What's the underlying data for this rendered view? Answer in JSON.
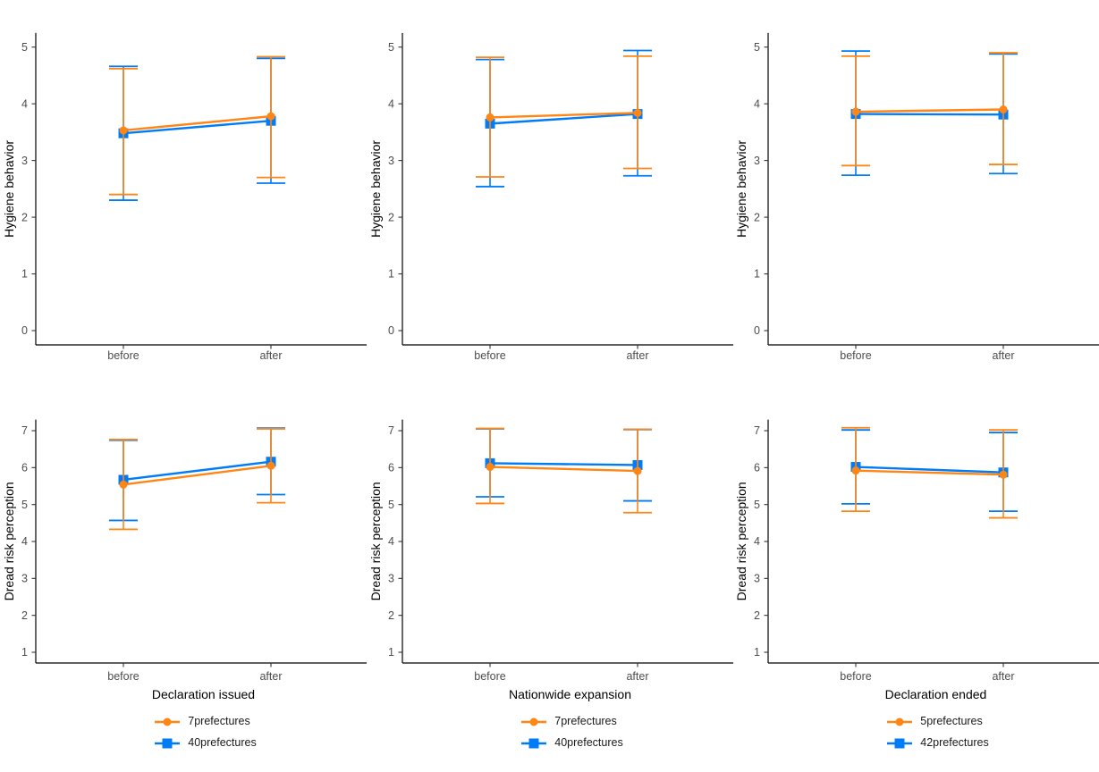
{
  "figure": {
    "background": "#ffffff",
    "rows": 2,
    "cols": 3,
    "column_topics": [
      "Declaration issued",
      "Nationwide expansion",
      "Declaration ended"
    ]
  },
  "colors": {
    "orange": "#FF8514",
    "blue": "#007CF8",
    "axis_line": "#000000",
    "tick_text": "#4D4D4D",
    "title_text": "#000000"
  },
  "chart_data": [
    {
      "id": "hygiene-declaration-issued",
      "type": "line",
      "row": 0,
      "col": 0,
      "ylabel": "Hygiene behavior",
      "xlabel": "",
      "x_categories": [
        "before",
        "after"
      ],
      "yticks": [
        0,
        1,
        2,
        3,
        4,
        5
      ],
      "ylim": [
        -0.25,
        5.25
      ],
      "grid": false,
      "series": [
        {
          "name": "7prefectures",
          "color_key": "orange",
          "shape": "circle",
          "values": [
            3.53,
            3.78
          ],
          "ci_low": [
            2.4,
            2.7
          ],
          "ci_high": [
            4.62,
            4.83
          ]
        },
        {
          "name": "40prefectures",
          "color_key": "blue",
          "shape": "square",
          "values": [
            3.48,
            3.7
          ],
          "ci_low": [
            2.3,
            2.6
          ],
          "ci_high": [
            4.66,
            4.8
          ]
        }
      ],
      "legend": null
    },
    {
      "id": "hygiene-nationwide-expansion",
      "type": "line",
      "row": 0,
      "col": 1,
      "ylabel": "Hygiene behavior",
      "xlabel": "",
      "x_categories": [
        "before",
        "after"
      ],
      "yticks": [
        0,
        1,
        2,
        3,
        4,
        5
      ],
      "ylim": [
        -0.25,
        5.25
      ],
      "grid": false,
      "series": [
        {
          "name": "7prefectures",
          "color_key": "orange",
          "shape": "circle",
          "values": [
            3.76,
            3.84
          ],
          "ci_low": [
            2.71,
            2.86
          ],
          "ci_high": [
            4.82,
            4.84
          ]
        },
        {
          "name": "40prefectures",
          "color_key": "blue",
          "shape": "square",
          "values": [
            3.65,
            3.82
          ],
          "ci_low": [
            2.54,
            2.73
          ],
          "ci_high": [
            4.78,
            4.94
          ]
        }
      ],
      "legend": null
    },
    {
      "id": "hygiene-declaration-ended",
      "type": "line",
      "row": 0,
      "col": 2,
      "ylabel": "Hygiene behavior",
      "xlabel": "",
      "x_categories": [
        "before",
        "after"
      ],
      "yticks": [
        0,
        1,
        2,
        3,
        4,
        5
      ],
      "ylim": [
        -0.25,
        5.25
      ],
      "grid": false,
      "series": [
        {
          "name": "5prefectures",
          "color_key": "orange",
          "shape": "circle",
          "values": [
            3.86,
            3.9
          ],
          "ci_low": [
            2.91,
            2.93
          ],
          "ci_high": [
            4.84,
            4.9
          ]
        },
        {
          "name": "42prefectures",
          "color_key": "blue",
          "shape": "square",
          "values": [
            3.82,
            3.81
          ],
          "ci_low": [
            2.74,
            2.77
          ],
          "ci_high": [
            4.93,
            4.88
          ]
        }
      ],
      "legend": null
    },
    {
      "id": "dread-declaration-issued",
      "type": "line",
      "row": 1,
      "col": 0,
      "ylabel": "Dread risk perception",
      "xlabel": "Declaration issued",
      "x_categories": [
        "before",
        "after"
      ],
      "yticks": [
        1,
        2,
        3,
        4,
        5,
        6,
        7
      ],
      "ylim": [
        0.7,
        7.3
      ],
      "grid": false,
      "series": [
        {
          "name": "7prefectures",
          "color_key": "orange",
          "shape": "circle",
          "values": [
            5.54,
            6.05
          ],
          "ci_low": [
            4.33,
            5.05
          ],
          "ci_high": [
            6.76,
            7.05
          ]
        },
        {
          "name": "40prefectures",
          "color_key": "blue",
          "shape": "square",
          "values": [
            5.67,
            6.16
          ],
          "ci_low": [
            4.57,
            5.27
          ],
          "ci_high": [
            6.74,
            7.07
          ]
        }
      ],
      "legend": [
        "7prefectures",
        "40prefectures"
      ]
    },
    {
      "id": "dread-nationwide-expansion",
      "type": "line",
      "row": 1,
      "col": 1,
      "ylabel": "Dread risk perception",
      "xlabel": "Nationwide expansion",
      "x_categories": [
        "before",
        "after"
      ],
      "yticks": [
        1,
        2,
        3,
        4,
        5,
        6,
        7
      ],
      "ylim": [
        0.7,
        7.3
      ],
      "grid": false,
      "series": [
        {
          "name": "7prefectures",
          "color_key": "orange",
          "shape": "circle",
          "values": [
            6.02,
            5.91
          ],
          "ci_low": [
            5.03,
            4.78
          ],
          "ci_high": [
            7.06,
            7.04
          ]
        },
        {
          "name": "40prefectures",
          "color_key": "blue",
          "shape": "square",
          "values": [
            6.12,
            6.07
          ],
          "ci_low": [
            5.21,
            5.1
          ],
          "ci_high": [
            7.05,
            7.03
          ]
        }
      ],
      "legend": [
        "7prefectures",
        "40prefectures"
      ]
    },
    {
      "id": "dread-declaration-ended",
      "type": "line",
      "row": 1,
      "col": 2,
      "ylabel": "Dread risk perception",
      "xlabel": "Declaration ended",
      "x_categories": [
        "before",
        "after"
      ],
      "yticks": [
        1,
        2,
        3,
        4,
        5,
        6,
        7
      ],
      "ylim": [
        0.7,
        7.3
      ],
      "grid": false,
      "series": [
        {
          "name": "5prefectures",
          "color_key": "orange",
          "shape": "circle",
          "values": [
            5.92,
            5.81
          ],
          "ci_low": [
            4.82,
            4.64
          ],
          "ci_high": [
            7.08,
            7.02
          ]
        },
        {
          "name": "42prefectures",
          "color_key": "blue",
          "shape": "square",
          "values": [
            6.02,
            5.87
          ],
          "ci_low": [
            5.02,
            4.82
          ],
          "ci_high": [
            7.02,
            6.95
          ]
        }
      ],
      "legend": [
        "5prefectures",
        "42prefectures"
      ]
    }
  ]
}
